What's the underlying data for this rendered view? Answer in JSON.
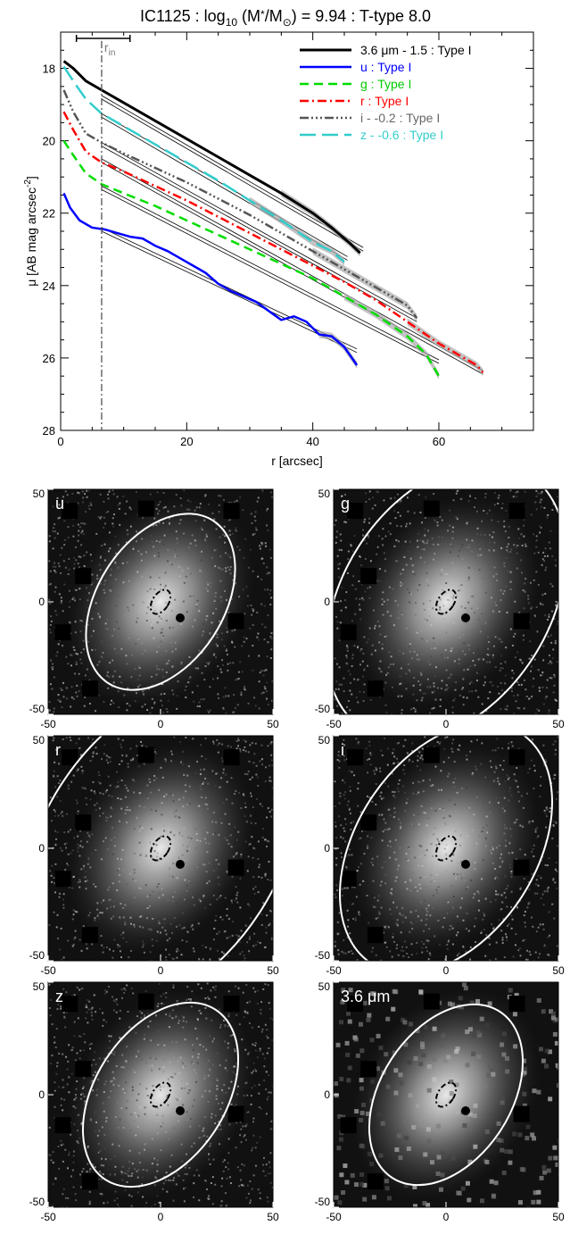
{
  "title": {
    "prefix": "IC1125 : log",
    "sub": "10",
    "mid": " (M",
    "star": "*",
    "slash": "/M",
    "sun": "⊙",
    "suffix": ") = 9.94 : T-type 8.0"
  },
  "profile": {
    "r_in_label": "r",
    "r_in_sub": "in",
    "r_in": 6.5,
    "r_in_bar": [
      2.5,
      11
    ],
    "chart_data": {
      "type": "line",
      "xlabel": "r [arcsec]",
      "ylabel_main": "μ [AB mag arcsec",
      "ylabel_exp": "-2",
      "ylabel_close": "]",
      "xlim": [
        0,
        75
      ],
      "ylim": [
        28,
        17
      ],
      "xticks": [
        "0",
        "20",
        "40",
        "60"
      ],
      "yticks": [
        "18",
        "20",
        "22",
        "24",
        "26",
        "28"
      ],
      "series": [
        {
          "name": "3.6 μm - 1.5 : Type I",
          "color": "#000000",
          "dash": "",
          "width": 3,
          "label_color": "#000000",
          "x": [
            0.5,
            2,
            4,
            6.5,
            10,
            15,
            20,
            25,
            30,
            35,
            40,
            43,
            46,
            47.5
          ],
          "y": [
            17.8,
            18.0,
            18.35,
            18.6,
            18.95,
            19.45,
            19.95,
            20.45,
            20.95,
            21.45,
            22.0,
            22.4,
            22.85,
            23.1
          ],
          "fit_x": [
            6.5,
            48
          ],
          "fit_y": [
            18.8,
            23.0
          ]
        },
        {
          "name": "u : Type I",
          "color": "#0000ff",
          "dash": "",
          "width": 2.5,
          "label_color": "#0000ff",
          "x": [
            0.5,
            1.5,
            3,
            5,
            7,
            9,
            11,
            13,
            15,
            17,
            19,
            21,
            23,
            25,
            27,
            29,
            31,
            33,
            35,
            37,
            39,
            41,
            43,
            45,
            46,
            47
          ],
          "y": [
            21.45,
            21.85,
            22.2,
            22.4,
            22.45,
            22.55,
            22.65,
            22.7,
            22.9,
            23.05,
            23.25,
            23.45,
            23.65,
            23.95,
            24.15,
            24.3,
            24.45,
            24.7,
            24.95,
            24.85,
            25.0,
            25.35,
            25.4,
            25.7,
            25.95,
            26.2
          ],
          "fit_x": [
            6.5,
            47
          ],
          "fit_y": [
            22.45,
            25.8
          ]
        },
        {
          "name": "g : Type I",
          "color": "#00dd00",
          "dash": "10,6",
          "width": 2.5,
          "label_color": "#00cc00",
          "x": [
            0.5,
            2,
            4,
            6.5,
            10,
            15,
            20,
            25,
            30,
            35,
            40,
            45,
            50,
            55,
            58,
            60
          ],
          "y": [
            20.0,
            20.4,
            20.9,
            21.2,
            21.45,
            21.8,
            22.2,
            22.6,
            23.0,
            23.4,
            23.8,
            24.3,
            24.8,
            25.4,
            25.9,
            26.5
          ],
          "fit_x": [
            6.5,
            60
          ],
          "fit_y": [
            21.3,
            26.1
          ]
        },
        {
          "name": "r : Type I",
          "color": "#ff0000",
          "dash": "10,4,2,4",
          "width": 2.5,
          "label_color": "#ff0000",
          "x": [
            0.5,
            2,
            4,
            6.5,
            10,
            15,
            20,
            25,
            30,
            35,
            40,
            45,
            50,
            55,
            60,
            63,
            66,
            67
          ],
          "y": [
            19.2,
            19.7,
            20.3,
            20.6,
            20.85,
            21.25,
            21.65,
            22.1,
            22.55,
            23.0,
            23.45,
            23.9,
            24.4,
            25.0,
            25.6,
            25.9,
            26.2,
            26.4
          ],
          "fit_x": [
            6.5,
            67
          ],
          "fit_y": [
            20.55,
            26.4
          ]
        },
        {
          "name": "i - -0.2 : Type I",
          "color": "#555555",
          "dash": "10,3,2,3,2,3,2,3",
          "width": 2.5,
          "label_color": "#666666",
          "x": [
            0.5,
            2,
            4,
            6.5,
            10,
            15,
            20,
            25,
            30,
            35,
            40,
            45,
            50,
            55,
            56.5
          ],
          "y": [
            18.6,
            19.2,
            19.8,
            20.05,
            20.35,
            20.75,
            21.15,
            21.6,
            22.05,
            22.55,
            23.05,
            23.55,
            24.05,
            24.55,
            24.9
          ],
          "fit_x": [
            6.5,
            56.5
          ],
          "fit_y": [
            20.1,
            24.95
          ]
        },
        {
          "name": "z - -0.6 : Type I",
          "color": "#33cccc",
          "dash": "18,7",
          "width": 2.5,
          "label_color": "#33cccc",
          "x": [
            0.5,
            2,
            4,
            6.5,
            10,
            15,
            20,
            25,
            30,
            35,
            40,
            43,
            45
          ],
          "y": [
            17.95,
            18.35,
            18.85,
            19.25,
            19.6,
            20.1,
            20.6,
            21.1,
            21.65,
            22.2,
            22.8,
            23.05,
            23.35
          ],
          "fit_x": [
            6.5,
            45.5
          ],
          "fit_y": [
            19.3,
            23.25
          ]
        }
      ]
    }
  },
  "panels": [
    {
      "label": "u",
      "row": 0,
      "col": 0,
      "ell_rx": 0.56,
      "ell_ry": 0.86,
      "ell_rot": 33,
      "texture": "noisy"
    },
    {
      "label": "g",
      "row": 0,
      "col": 1,
      "ell_rx": 0.92,
      "ell_ry": 1.35,
      "ell_rot": 33,
      "texture": "noisy"
    },
    {
      "label": "r",
      "row": 1,
      "col": 0,
      "ell_rx": 1.05,
      "ell_ry": 1.6,
      "ell_rot": 33,
      "texture": "noisy"
    },
    {
      "label": "i",
      "row": 1,
      "col": 1,
      "ell_rx": 0.8,
      "ell_ry": 1.22,
      "ell_rot": 33,
      "texture": "noisy"
    },
    {
      "label": "z",
      "row": 2,
      "col": 0,
      "ell_rx": 0.58,
      "ell_ry": 0.9,
      "ell_rot": 33,
      "texture": "noisy"
    },
    {
      "label": "3.6 μm",
      "row": 2,
      "col": 1,
      "ell_rx": 0.58,
      "ell_ry": 0.88,
      "ell_rot": 33,
      "texture": "smooth"
    }
  ],
  "panel_ticks": {
    "x": [
      "-50",
      "0",
      "50"
    ],
    "y": [
      "50",
      "0",
      "-50"
    ]
  },
  "colors": {
    "background": "#ffffff",
    "axes": "#000000",
    "fit_line": "#000000",
    "band": "#aaaaaa",
    "r_in_line": "#555555",
    "ellipse": "#ffffff"
  }
}
